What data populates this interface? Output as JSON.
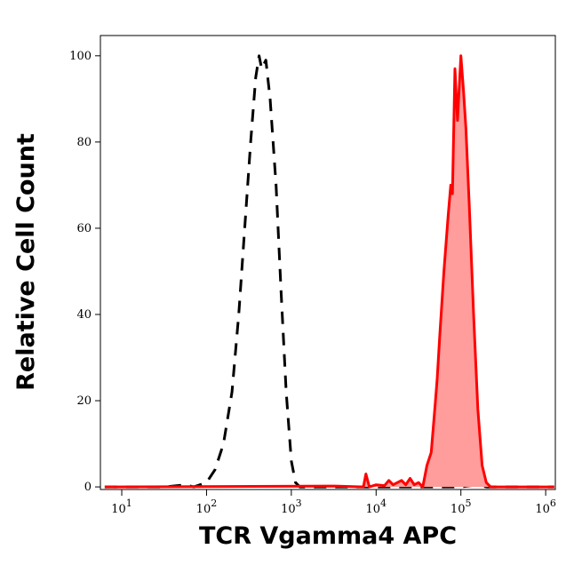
{
  "chart_data": {
    "type": "line",
    "x_label": "TCR Vgamma4 APC",
    "y_label": "Relative Cell Count",
    "xscale": "log",
    "xlim": [
      5.6,
      1300000
    ],
    "ylim": [
      -0.6,
      104.7
    ],
    "xticks": [
      {
        "value": 10,
        "label": "10",
        "sup": "1"
      },
      {
        "value": 100,
        "label": "10",
        "sup": "2"
      },
      {
        "value": 1000,
        "label": "10",
        "sup": "3"
      },
      {
        "value": 10000,
        "label": "10",
        "sup": "4"
      },
      {
        "value": 100000,
        "label": "10",
        "sup": "5"
      },
      {
        "value": 1000000,
        "label": "10",
        "sup": "6"
      }
    ],
    "yticks": [
      0,
      20,
      40,
      60,
      80,
      100
    ],
    "series": [
      {
        "color": "#000000",
        "dashed": true,
        "filled": false,
        "x": [
          6.3,
          31.6,
          56.2,
          70.8,
          100,
          125.9,
          158.5,
          199.5,
          239.9,
          281.8,
          331.1,
          380.2,
          416.9,
          446.7,
          501.2,
          562.3,
          660.7,
          758.6,
          871,
          1000,
          1122,
          1259,
          3162,
          100000,
          158489,
          199526,
          1258925
        ],
        "values": [
          0,
          0,
          0.5,
          0,
          1,
          4,
          10,
          22,
          40,
          60,
          80,
          95,
          100,
          97,
          99,
          90,
          70,
          45,
          22,
          6,
          1,
          0,
          0,
          0,
          0.5,
          0,
          0
        ]
      },
      {
        "color": "#ff0000",
        "fill_color": "#ff9c9c",
        "dashed": false,
        "filled": true,
        "x": [
          6.3,
          3162,
          7079,
          7586,
          8318,
          10000,
          12589,
          14125,
          15849,
          19953,
          22387,
          25119,
          28184,
          31623,
          35481,
          39811,
          44668,
          50119,
          52481,
          56234,
          63096,
          70795,
          75858,
          79433,
          85114,
          91201,
          100000,
          107152,
          114815,
          125893,
          141254,
          158489,
          177828,
          199526,
          223872,
          1258925
        ],
        "values": [
          0,
          0.2,
          0,
          3,
          0,
          0.5,
          0.3,
          1.5,
          0.5,
          1.5,
          0.5,
          2,
          0.5,
          1,
          0,
          5,
          8,
          20,
          25,
          35,
          50,
          63,
          70,
          68,
          97,
          85,
          100,
          92,
          83,
          65,
          40,
          18,
          5,
          1,
          0,
          0
        ]
      }
    ]
  }
}
